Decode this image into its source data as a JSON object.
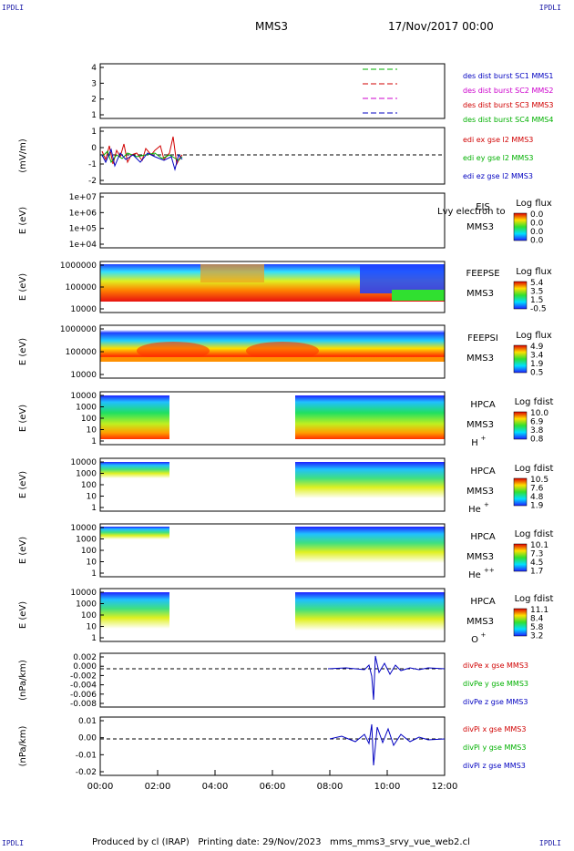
{
  "corners": {
    "tl": "IPDLI",
    "tr": "IPDLI",
    "bl": "IPDLI",
    "br": "IPDLI"
  },
  "header": {
    "spacecraft": "MMS3",
    "datetime": "17/Nov/2017 00:00"
  },
  "footer": {
    "text": "Produced by cl (IRAP)   Printing date: 29/Nov/2023   mms_mms3_srvy_vue_web2.cl"
  },
  "colors": {
    "red": "#d00000",
    "green": "#00b000",
    "blue": "#0000c0",
    "magenta": "#cc00cc"
  },
  "chart_data": {
    "type": "multi-panel",
    "x_tick_labels": [
      "00:00",
      "02:00",
      "04:00",
      "06:00",
      "08:00",
      "10:00",
      "12:00"
    ],
    "x_range_hours": [
      0,
      12
    ],
    "panels": [
      {
        "id": "burst",
        "type": "line",
        "y_ticks": [
          "4",
          "3",
          "2",
          "1"
        ],
        "legend": [
          {
            "text": "des dist burst SC1 MMS1",
            "color": "#0000c0"
          },
          {
            "text": "des dist burst SC2 MMS2",
            "color": "#cc00cc"
          },
          {
            "text": "des dist burst SC3 MMS3",
            "color": "#d00000"
          },
          {
            "text": "des dist burst SC4 MMS4",
            "color": "#00b000"
          }
        ]
      },
      {
        "id": "edi",
        "type": "line",
        "ylabel": "(mV/m)",
        "y_ticks": [
          "1",
          "0",
          "-1",
          "-2"
        ],
        "legend": [
          {
            "text": "edi ex gse l2 MMS3",
            "color": "#d00000"
          },
          {
            "text": "edi ey gse l2 MMS3",
            "color": "#00b000"
          },
          {
            "text": "edi ez gse l2 MMS3",
            "color": "#0000c0"
          }
        ]
      },
      {
        "id": "eis",
        "type": "heatmap",
        "ylabel": "E (eV)",
        "y_ticks": [
          "1e+07",
          "1e+06",
          "1e+05",
          "1e+04"
        ],
        "instrument": "EIS",
        "spacecraft": "MMS3",
        "overlay_text": "Lvy electron to",
        "cbar_title": "Log flux",
        "cbar_ticks": [
          "0.0",
          "0.0",
          "0.0",
          "0.0"
        ]
      },
      {
        "id": "feepse",
        "type": "heatmap",
        "ylabel": "E (eV)",
        "y_ticks": [
          "1000000",
          "100000",
          "10000"
        ],
        "instrument": "FEEPSE",
        "spacecraft": "MMS3",
        "cbar_title": "Log flux",
        "cbar_ticks": [
          "5.4",
          "3.5",
          "1.5",
          "-0.5"
        ]
      },
      {
        "id": "feepsi",
        "type": "heatmap",
        "ylabel": "E (eV)",
        "y_ticks": [
          "1000000",
          "100000",
          "10000"
        ],
        "instrument": "FEEPSI",
        "spacecraft": "MMS3",
        "cbar_title": "Log flux",
        "cbar_ticks": [
          "4.9",
          "3.4",
          "1.9",
          "0.5"
        ]
      },
      {
        "id": "hpca_h",
        "type": "heatmap",
        "ylabel": "E (eV)",
        "y_ticks": [
          "10000",
          "1000",
          "100",
          "10",
          "1"
        ],
        "instrument": "HPCA",
        "spacecraft": "MMS3",
        "species": "H",
        "species_sup": "+",
        "cbar_title": "Log fdist",
        "cbar_ticks": [
          "10.0",
          "6.9",
          "3.8",
          "0.8"
        ]
      },
      {
        "id": "hpca_he",
        "type": "heatmap",
        "ylabel": "E (eV)",
        "y_ticks": [
          "10000",
          "1000",
          "100",
          "10",
          "1"
        ],
        "instrument": "HPCA",
        "spacecraft": "MMS3",
        "species": "He",
        "species_sup": "+",
        "cbar_title": "Log fdist",
        "cbar_ticks": [
          "10.5",
          "7.6",
          "4.8",
          "1.9"
        ]
      },
      {
        "id": "hpca_he2",
        "type": "heatmap",
        "ylabel": "E (eV)",
        "y_ticks": [
          "10000",
          "1000",
          "100",
          "10",
          "1"
        ],
        "instrument": "HPCA",
        "spacecraft": "MMS3",
        "species": "He",
        "species_sup": "++",
        "cbar_title": "Log fdist",
        "cbar_ticks": [
          "10.1",
          "7.3",
          "4.5",
          "1.7"
        ]
      },
      {
        "id": "hpca_o",
        "type": "heatmap",
        "ylabel": "E (eV)",
        "y_ticks": [
          "10000",
          "1000",
          "100",
          "10",
          "1"
        ],
        "instrument": "HPCA",
        "spacecraft": "MMS3",
        "species": "O",
        "species_sup": "+",
        "cbar_title": "Log fdist",
        "cbar_ticks": [
          "11.1",
          "8.4",
          "5.8",
          "3.2"
        ]
      },
      {
        "id": "divpe",
        "type": "line",
        "ylabel": "(nPa/km)",
        "y_ticks": [
          "0.002",
          "0.000",
          "-0.002",
          "-0.004",
          "-0.006",
          "-0.008"
        ],
        "legend": [
          {
            "text": "divPe x gse MMS3",
            "color": "#d00000"
          },
          {
            "text": "divPe y gse MMS3",
            "color": "#00b000"
          },
          {
            "text": "divPe z gse MMS3",
            "color": "#0000c0"
          }
        ]
      },
      {
        "id": "divpi",
        "type": "line",
        "ylabel": "(nPa/km)",
        "y_ticks": [
          "0.01",
          "0.00",
          "-0.01",
          "-0.02"
        ],
        "legend": [
          {
            "text": "divPi x gse MMS3",
            "color": "#d00000"
          },
          {
            "text": "divPi y gse MMS3",
            "color": "#00b000"
          },
          {
            "text": "divPi z gse MMS3",
            "color": "#0000c0"
          }
        ]
      }
    ]
  }
}
